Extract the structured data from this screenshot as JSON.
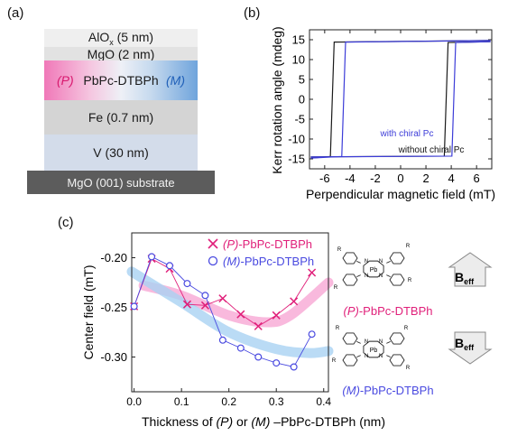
{
  "panels": {
    "a": {
      "label": "(a)"
    },
    "b": {
      "label": "(b)"
    },
    "c": {
      "label": "(c)"
    }
  },
  "stack": {
    "layers": [
      {
        "id": "aloxsup",
        "text": "AlO",
        "sub": "x",
        "tail": " (5 nm)"
      },
      {
        "id": "mgo",
        "text": "MgO (2 nm)"
      },
      {
        "id": "pbpc",
        "left": "(P)",
        "middle": "PbPc-DTBPh",
        "right": "(M)"
      },
      {
        "id": "fe",
        "text": "Fe (0.7 nm)"
      },
      {
        "id": "v",
        "text": "V (30 nm)"
      },
      {
        "id": "substrate",
        "text": "MgO (001) substrate"
      }
    ],
    "colors": {
      "alox": "#eeeeee",
      "mgo": "#dedede",
      "pink": "#f08cc0",
      "blue": "#80aee0",
      "fe": "#d6d6d6",
      "v": "#d2dbe9",
      "substrate": "#606060"
    }
  },
  "chart_data": [
    {
      "type": "line",
      "panel": "b",
      "xlabel": "Perpendicular magnetic field (mT)",
      "ylabel": "Kerr rotation angle (mdeg)",
      "xlim": [
        -7.2,
        7.2
      ],
      "ylim": [
        -17.5,
        17.5
      ],
      "xticks": [
        -6,
        -4,
        -2,
        0,
        2,
        4,
        6
      ],
      "yticks": [
        -15,
        -10,
        -5,
        0,
        5,
        10,
        15
      ],
      "series": [
        {
          "name": "with chiral Pc",
          "color": "#3c3cd8",
          "saturation": 14.5,
          "coercive_up": 4.2,
          "coercive_down": -4.5
        },
        {
          "name": "without chiral Pc",
          "color": "#1a1a1a",
          "saturation": 14.5,
          "coercive_up": 3.6,
          "coercive_down": -5.4
        }
      ]
    },
    {
      "type": "line",
      "panel": "c",
      "xlabel_parts": [
        "Thickness of ",
        "(P)",
        " or ",
        "(M)",
        " –PbPc-DTBPh (nm)"
      ],
      "ylabel": "Center field (mT)",
      "xlim": [
        -0.005,
        0.41
      ],
      "ylim": [
        -0.335,
        -0.175
      ],
      "xticks": [
        0.0,
        0.1,
        0.2,
        0.3,
        0.4
      ],
      "xtick_labels": [
        "0.0",
        "0.1",
        "0.2",
        "0.3",
        "0.4"
      ],
      "yticks": [
        -0.2,
        -0.25,
        -0.3
      ],
      "ytick_labels": [
        "-0.20",
        "-0.25",
        "-0.30"
      ],
      "series": [
        {
          "name_prefix": "(P)",
          "name": "-PbPc-DTBPh",
          "marker": "x",
          "color": "#e0207a",
          "x": [
            0.0,
            0.037,
            0.075,
            0.112,
            0.15,
            0.187,
            0.225,
            0.262,
            0.3,
            0.337,
            0.375
          ],
          "y": [
            -0.249,
            -0.201,
            -0.211,
            -0.247,
            -0.248,
            -0.241,
            -0.257,
            -0.269,
            -0.258,
            -0.244,
            -0.215
          ]
        },
        {
          "name_prefix": "(M)",
          "name": "-PbPc-DTBPh",
          "marker": "o",
          "color": "#4a4ae0",
          "x": [
            0.0,
            0.037,
            0.075,
            0.112,
            0.15,
            0.187,
            0.225,
            0.262,
            0.3,
            0.337,
            0.375
          ],
          "y": [
            -0.249,
            -0.199,
            -0.208,
            -0.226,
            -0.238,
            -0.283,
            -0.291,
            -0.3,
            -0.306,
            -0.31,
            -0.277
          ]
        }
      ],
      "guides": [
        {
          "name": "P-trend",
          "color": "#f7a8d4",
          "x": [
            0.02,
            0.1,
            0.2,
            0.28,
            0.33,
            0.41
          ],
          "y": [
            -0.228,
            -0.238,
            -0.258,
            -0.265,
            -0.258,
            -0.225
          ]
        },
        {
          "name": "M-trend",
          "color": "#a9d2f2",
          "x": [
            -0.005,
            0.1,
            0.2,
            0.3,
            0.37,
            0.41
          ],
          "y": [
            -0.214,
            -0.245,
            -0.275,
            -0.292,
            -0.296,
            -0.294
          ]
        }
      ]
    }
  ],
  "molecules": {
    "p": {
      "label_prefix": "(P)",
      "label": "-PbPc-DTBPh",
      "arrow": "up",
      "beff": "B",
      "beff_sub": "eff"
    },
    "m": {
      "label_prefix": "(M)",
      "label": "-PbPc-DTBPh",
      "arrow": "down",
      "beff": "B",
      "beff_sub": "eff"
    },
    "atoms": {
      "r": "R",
      "n": "N",
      "pb": "Pb"
    }
  }
}
